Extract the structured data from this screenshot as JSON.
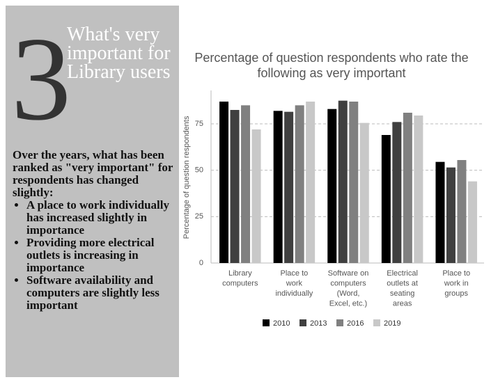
{
  "panel": {
    "number": "3",
    "title": "What's very important for Library users",
    "intro": "Over the years, what has been ranked as \"very important\" for respondents has changed slightly:",
    "bullets": [
      "A place to work individually has increased slightly in importance",
      "Providing more electrical outlets is increasing in importance",
      "Software availability and computers are slightly less important"
    ]
  },
  "chart_data": {
    "type": "bar",
    "title": [
      "Percentage of question respondents who rate the",
      "following as very important"
    ],
    "y_label": "Percentage of question respondents",
    "categories": [
      [
        "Library",
        "computers"
      ],
      [
        "Place to",
        "work",
        "individually"
      ],
      [
        "Software on",
        "computers",
        "(Word,",
        "Excel, etc.)"
      ],
      [
        "Electrical",
        "outlets at",
        "seating",
        "areas"
      ],
      [
        "Place to",
        "work in",
        "groups"
      ]
    ],
    "series": [
      {
        "name": "2010",
        "color": "#000000",
        "values": [
          87,
          82,
          83,
          69,
          54.5
        ]
      },
      {
        "name": "2013",
        "color": "#404040",
        "values": [
          82.5,
          81.5,
          87.5,
          76,
          51.5
        ]
      },
      {
        "name": "2016",
        "color": "#808080",
        "values": [
          85,
          85,
          87,
          81,
          55.5
        ]
      },
      {
        "name": "2019",
        "color": "#c8c8c8",
        "values": [
          72,
          87,
          75.5,
          79.5,
          44
        ]
      }
    ],
    "ylim": [
      0,
      93
    ],
    "yticks": [
      0,
      25,
      50,
      75
    ],
    "grid": true
  }
}
